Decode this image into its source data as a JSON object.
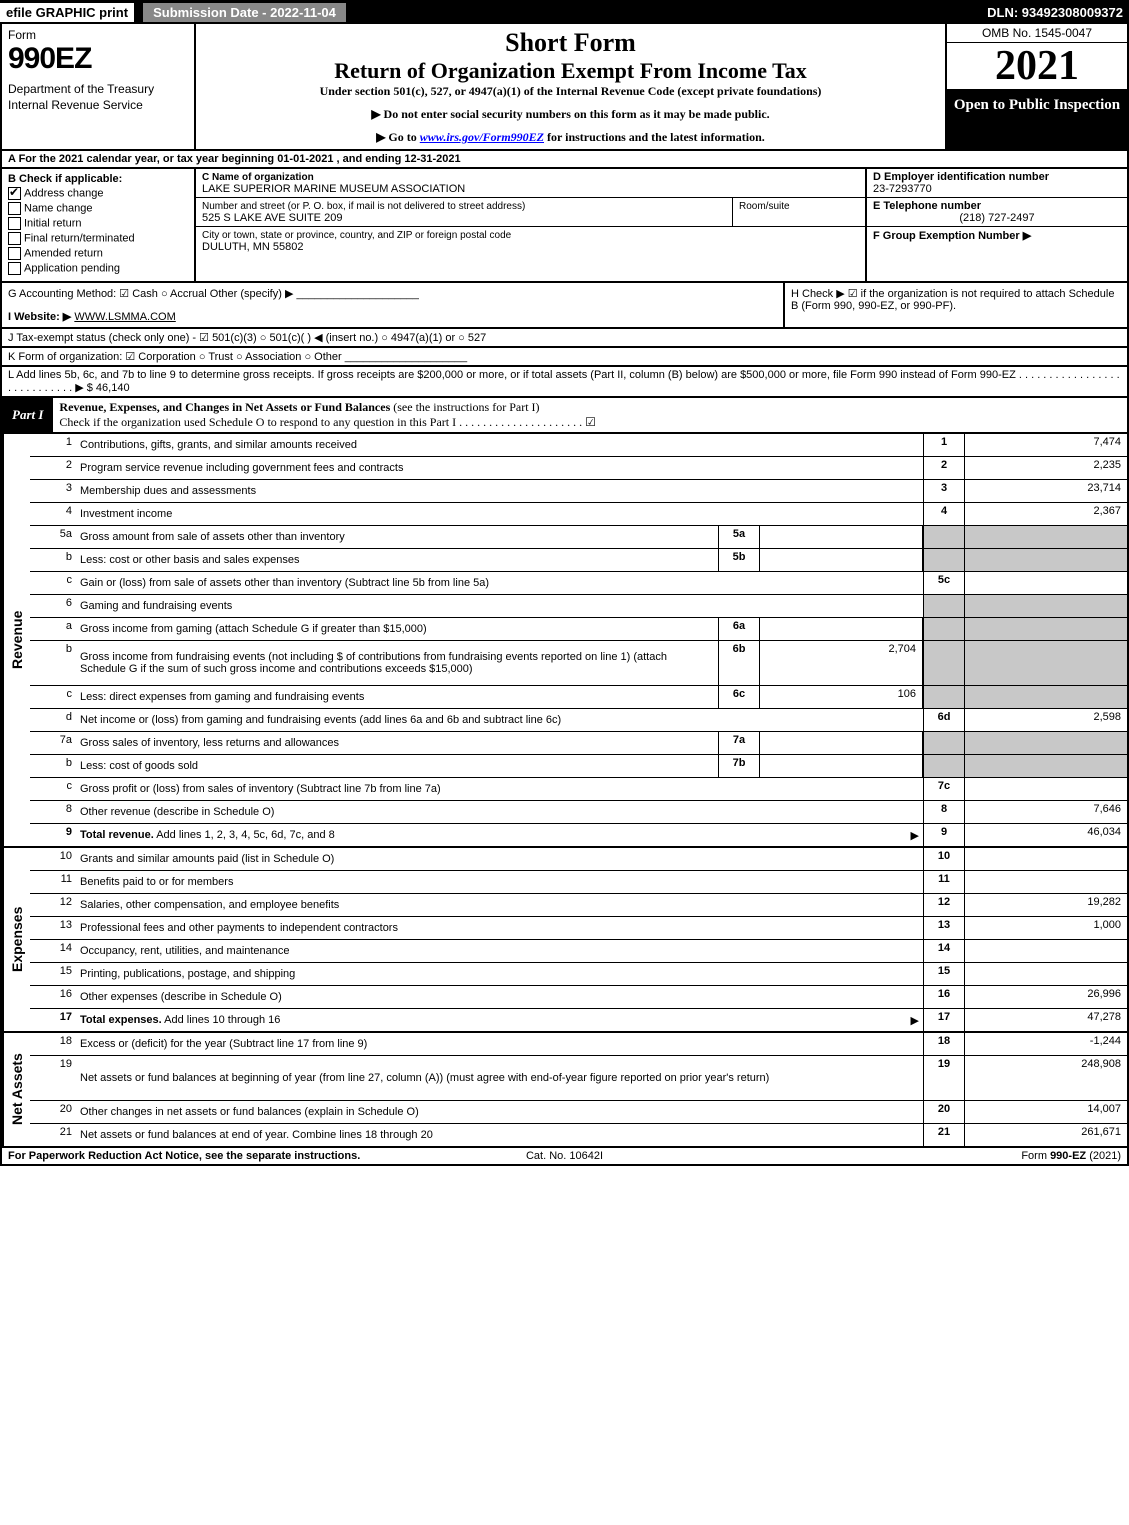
{
  "topbar": {
    "efile": "efile GRAPHIC print",
    "submission": "Submission Date - 2022-11-04",
    "dln": "DLN: 93492308009372"
  },
  "header": {
    "form_word": "Form",
    "form_num": "990EZ",
    "dept": "Department of the Treasury\nInternal Revenue Service",
    "short_form": "Short Form",
    "title": "Return of Organization Exempt From Income Tax",
    "subtitle": "Under section 501(c), 527, or 4947(a)(1) of the Internal Revenue Code (except private foundations)",
    "note1": "▶ Do not enter social security numbers on this form as it may be made public.",
    "note2_pre": "▶ Go to ",
    "note2_link": "www.irs.gov/Form990EZ",
    "note2_post": " for instructions and the latest information.",
    "omb": "OMB No. 1545-0047",
    "year": "2021",
    "open": "Open to Public Inspection"
  },
  "row_a": "A  For the 2021 calendar year, or tax year beginning 01-01-2021 , and ending 12-31-2021",
  "section_b": {
    "title": "B  Check if applicable:",
    "items": [
      {
        "label": "Address change",
        "checked": true
      },
      {
        "label": "Name change",
        "checked": false
      },
      {
        "label": "Initial return",
        "checked": false
      },
      {
        "label": "Final return/terminated",
        "checked": false
      },
      {
        "label": "Amended return",
        "checked": false
      },
      {
        "label": "Application pending",
        "checked": false
      }
    ]
  },
  "section_c": {
    "name_lbl": "C Name of organization",
    "name": "LAKE SUPERIOR MARINE MUSEUM ASSOCIATION",
    "street_lbl": "Number and street (or P. O. box, if mail is not delivered to street address)",
    "street": "525 S LAKE AVE SUITE 209",
    "room_lbl": "Room/suite",
    "city_lbl": "City or town, state or province, country, and ZIP or foreign postal code",
    "city": "DULUTH, MN  55802"
  },
  "section_d": {
    "ein_lbl": "D Employer identification number",
    "ein": "23-7293770",
    "phone_lbl": "E Telephone number",
    "phone": "(218) 727-2497",
    "group_lbl": "F Group Exemption Number  ▶"
  },
  "row_g": "G Accounting Method:   ☑ Cash  ○ Accrual   Other (specify) ▶ ____________________",
  "row_h": "H   Check ▶  ☑  if the organization is not required to attach Schedule B (Form 990, 990-EZ, or 990-PF).",
  "row_i_lbl": "I Website: ▶",
  "row_i_val": "WWW.LSMMA.COM",
  "row_j": "J Tax-exempt status (check only one) -  ☑ 501(c)(3)  ○  501(c)(   ) ◀ (insert no.)  ○  4947(a)(1) or  ○  527",
  "row_k": "K Form of organization:   ☑ Corporation   ○ Trust   ○ Association   ○ Other  ____________________",
  "row_l": "L Add lines 5b, 6c, and 7b to line 9 to determine gross receipts. If gross receipts are $200,000 or more, or if total assets (Part II, column (B) below) are $500,000 or more, file Form 990 instead of Form 990-EZ  .  .  .  .  .  .  .  .  .  .  .  .  .  .  .  .  .  .  .  .  .  .  .  .  .  .  .  .  ▶ $ 46,140",
  "part1": {
    "label": "Part I",
    "title_bold": "Revenue, Expenses, and Changes in Net Assets or Fund Balances",
    "title_rest": " (see the instructions for Part I)",
    "check_line": "Check if the organization used Schedule O to respond to any question in this Part I  .  .  .  .  .  .  .  .  .  .  .  .  .  .  .  .  .  .  .  .  .  ☑"
  },
  "revenue": [
    {
      "n": "1",
      "desc": "Contributions, gifts, grants, and similar amounts received",
      "rn": "1",
      "rv": "7,474"
    },
    {
      "n": "2",
      "desc": "Program service revenue including government fees and contracts",
      "rn": "2",
      "rv": "2,235"
    },
    {
      "n": "3",
      "desc": "Membership dues and assessments",
      "rn": "3",
      "rv": "23,714"
    },
    {
      "n": "4",
      "desc": "Investment income",
      "rn": "4",
      "rv": "2,367"
    },
    {
      "n": "5a",
      "desc": "Gross amount from sale of assets other than inventory",
      "sn": "5a",
      "sv": "",
      "shade": true
    },
    {
      "n": "b",
      "desc": "Less: cost or other basis and sales expenses",
      "sn": "5b",
      "sv": "",
      "shade": true
    },
    {
      "n": "c",
      "desc": "Gain or (loss) from sale of assets other than inventory (Subtract line 5b from line 5a)",
      "rn": "5c",
      "rv": ""
    },
    {
      "n": "6",
      "desc": "Gaming and fundraising events",
      "shade": true
    },
    {
      "n": "a",
      "desc": "Gross income from gaming (attach Schedule G if greater than $15,000)",
      "sn": "6a",
      "sv": "",
      "shade": true
    },
    {
      "n": "b",
      "desc": "Gross income from fundraising events (not including $                 of contributions from fundraising events reported on line 1) (attach Schedule G if the sum of such gross income and contributions exceeds $15,000)",
      "sn": "6b",
      "sv": "2,704",
      "shade": true,
      "tall": true
    },
    {
      "n": "c",
      "desc": "Less: direct expenses from gaming and fundraising events",
      "sn": "6c",
      "sv": "106",
      "shade": true
    },
    {
      "n": "d",
      "desc": "Net income or (loss) from gaming and fundraising events (add lines 6a and 6b and subtract line 6c)",
      "rn": "6d",
      "rv": "2,598"
    },
    {
      "n": "7a",
      "desc": "Gross sales of inventory, less returns and allowances",
      "sn": "7a",
      "sv": "",
      "shade": true
    },
    {
      "n": "b",
      "desc": "Less: cost of goods sold",
      "sn": "7b",
      "sv": "",
      "shade": true
    },
    {
      "n": "c",
      "desc": "Gross profit or (loss) from sales of inventory (Subtract line 7b from line 7a)",
      "rn": "7c",
      "rv": ""
    },
    {
      "n": "8",
      "desc": "Other revenue (describe in Schedule O)",
      "rn": "8",
      "rv": "7,646"
    },
    {
      "n": "9",
      "desc": "Total revenue. Add lines 1, 2, 3, 4, 5c, 6d, 7c, and 8",
      "rn": "9",
      "rv": "46,034",
      "bold": true,
      "arrow": true
    }
  ],
  "expenses": [
    {
      "n": "10",
      "desc": "Grants and similar amounts paid (list in Schedule O)",
      "rn": "10",
      "rv": ""
    },
    {
      "n": "11",
      "desc": "Benefits paid to or for members",
      "rn": "11",
      "rv": ""
    },
    {
      "n": "12",
      "desc": "Salaries, other compensation, and employee benefits",
      "rn": "12",
      "rv": "19,282"
    },
    {
      "n": "13",
      "desc": "Professional fees and other payments to independent contractors",
      "rn": "13",
      "rv": "1,000"
    },
    {
      "n": "14",
      "desc": "Occupancy, rent, utilities, and maintenance",
      "rn": "14",
      "rv": ""
    },
    {
      "n": "15",
      "desc": "Printing, publications, postage, and shipping",
      "rn": "15",
      "rv": ""
    },
    {
      "n": "16",
      "desc": "Other expenses (describe in Schedule O)",
      "rn": "16",
      "rv": "26,996"
    },
    {
      "n": "17",
      "desc": "Total expenses. Add lines 10 through 16",
      "rn": "17",
      "rv": "47,278",
      "bold": true,
      "arrow": true
    }
  ],
  "netassets": [
    {
      "n": "18",
      "desc": "Excess or (deficit) for the year (Subtract line 17 from line 9)",
      "rn": "18",
      "rv": "-1,244"
    },
    {
      "n": "19",
      "desc": "Net assets or fund balances at beginning of year (from line 27, column (A)) (must agree with end-of-year figure reported on prior year's return)",
      "rn": "19",
      "rv": "248,908",
      "tall": true
    },
    {
      "n": "20",
      "desc": "Other changes in net assets or fund balances (explain in Schedule O)",
      "rn": "20",
      "rv": "14,007"
    },
    {
      "n": "21",
      "desc": "Net assets or fund balances at end of year. Combine lines 18 through 20",
      "rn": "21",
      "rv": "261,671"
    }
  ],
  "footer": {
    "left": "For Paperwork Reduction Act Notice, see the separate instructions.",
    "mid": "Cat. No. 10642I",
    "right": "Form 990-EZ (2021)"
  },
  "vlabels": {
    "revenue": "Revenue",
    "expenses": "Expenses",
    "netassets": "Net Assets"
  }
}
